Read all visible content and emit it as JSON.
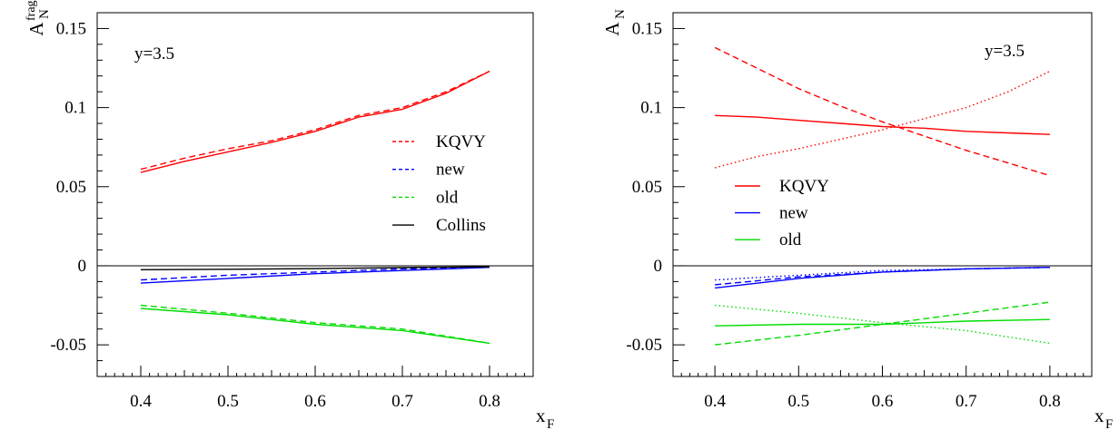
{
  "chart_data": [
    {
      "type": "line",
      "ylabel": "A_N^frag",
      "ylabel_main": "A",
      "ylabel_sub": "N",
      "ylabel_sup": "frag",
      "xlabel": "x_F",
      "xlabel_main": "x",
      "xlabel_sub": "F",
      "annotation": "y=3.5",
      "xlim": [
        0.35,
        0.85
      ],
      "ylim": [
        -0.07,
        0.16
      ],
      "xticks": [
        0.4,
        0.5,
        0.6,
        0.7,
        0.8
      ],
      "xtick_labels": [
        "0.4",
        "0.5",
        "0.6",
        "0.7",
        "0.8"
      ],
      "yticks": [
        -0.05,
        0,
        0.05,
        0.1,
        0.15
      ],
      "ytick_labels": [
        "-0.05",
        "0",
        "0.05",
        "0.1",
        "0.15"
      ],
      "legend": [
        {
          "label": "KQVY",
          "color": "#ff0000",
          "style": "dashed"
        },
        {
          "label": "new",
          "color": "#0000ff",
          "style": "dashed"
        },
        {
          "label": "old",
          "color": "#00dd00",
          "style": "dashed"
        },
        {
          "label": "Collins",
          "color": "#000000",
          "style": "solid"
        }
      ],
      "legend_position": "middle-right",
      "series": [
        {
          "color": "#ff0000",
          "style": "solid",
          "x": [
            0.4,
            0.45,
            0.5,
            0.55,
            0.6,
            0.65,
            0.7,
            0.75,
            0.8
          ],
          "y": [
            0.059,
            0.066,
            0.072,
            0.078,
            0.085,
            0.094,
            0.099,
            0.109,
            0.123
          ]
        },
        {
          "color": "#ff0000",
          "style": "dashed",
          "x": [
            0.4,
            0.45,
            0.5,
            0.55,
            0.6,
            0.65,
            0.7,
            0.75,
            0.8
          ],
          "y": [
            0.061,
            0.068,
            0.074,
            0.079,
            0.086,
            0.095,
            0.1,
            0.11,
            0.123
          ]
        },
        {
          "color": "#0000ff",
          "style": "solid",
          "x": [
            0.4,
            0.5,
            0.6,
            0.7,
            0.8
          ],
          "y": [
            -0.011,
            -0.008,
            -0.005,
            -0.003,
            -0.001
          ]
        },
        {
          "color": "#0000ff",
          "style": "dashed",
          "x": [
            0.4,
            0.5,
            0.6,
            0.7,
            0.8
          ],
          "y": [
            -0.009,
            -0.006,
            -0.004,
            -0.002,
            -0.001
          ]
        },
        {
          "color": "#00dd00",
          "style": "solid",
          "x": [
            0.4,
            0.5,
            0.6,
            0.7,
            0.8
          ],
          "y": [
            -0.027,
            -0.031,
            -0.037,
            -0.041,
            -0.049
          ]
        },
        {
          "color": "#00dd00",
          "style": "dashed",
          "x": [
            0.4,
            0.5,
            0.6,
            0.7,
            0.8
          ],
          "y": [
            -0.025,
            -0.03,
            -0.036,
            -0.04,
            -0.049
          ]
        },
        {
          "color": "#000000",
          "style": "solid",
          "x": [
            0.4,
            0.5,
            0.6,
            0.7,
            0.8
          ],
          "y": [
            -0.0025,
            -0.0022,
            -0.0018,
            -0.0012,
            -0.0006
          ]
        }
      ]
    },
    {
      "type": "line",
      "ylabel": "A_N",
      "ylabel_main": "A",
      "ylabel_sub": "N",
      "ylabel_sup": "",
      "xlabel": "x_F",
      "xlabel_main": "x",
      "xlabel_sub": "F",
      "annotation": "y=3.5",
      "xlim": [
        0.35,
        0.85
      ],
      "ylim": [
        -0.07,
        0.16
      ],
      "xticks": [
        0.4,
        0.5,
        0.6,
        0.7,
        0.8
      ],
      "xtick_labels": [
        "0.4",
        "0.5",
        "0.6",
        "0.7",
        "0.8"
      ],
      "yticks": [
        -0.05,
        0,
        0.05,
        0.1,
        0.15
      ],
      "ytick_labels": [
        "-0.05",
        "0",
        "0.05",
        "0.1",
        "0.15"
      ],
      "legend": [
        {
          "label": "KQVY",
          "color": "#ff0000",
          "style": "solid"
        },
        {
          "label": "new",
          "color": "#0000ff",
          "style": "solid"
        },
        {
          "label": "old",
          "color": "#00dd00",
          "style": "solid"
        }
      ],
      "legend_position": "middle-left",
      "series": [
        {
          "color": "#ff0000",
          "style": "solid",
          "x": [
            0.4,
            0.45,
            0.5,
            0.55,
            0.6,
            0.65,
            0.7,
            0.75,
            0.8
          ],
          "y": [
            0.095,
            0.094,
            0.092,
            0.09,
            0.088,
            0.087,
            0.085,
            0.084,
            0.083
          ]
        },
        {
          "color": "#ff0000",
          "style": "dashed",
          "x": [
            0.4,
            0.45,
            0.5,
            0.55,
            0.6,
            0.65,
            0.7,
            0.75,
            0.8
          ],
          "y": [
            0.138,
            0.125,
            0.112,
            0.101,
            0.091,
            0.082,
            0.073,
            0.065,
            0.057
          ]
        },
        {
          "color": "#ff0000",
          "style": "dotted",
          "x": [
            0.4,
            0.45,
            0.5,
            0.55,
            0.6,
            0.65,
            0.7,
            0.75,
            0.8
          ],
          "y": [
            0.062,
            0.069,
            0.074,
            0.08,
            0.086,
            0.093,
            0.1,
            0.11,
            0.123
          ]
        },
        {
          "color": "#0000ff",
          "style": "solid",
          "x": [
            0.4,
            0.5,
            0.6,
            0.7,
            0.8
          ],
          "y": [
            -0.014,
            -0.008,
            -0.004,
            -0.002,
            -0.001
          ]
        },
        {
          "color": "#0000ff",
          "style": "dashed",
          "x": [
            0.4,
            0.5,
            0.6,
            0.7,
            0.8
          ],
          "y": [
            -0.012,
            -0.007,
            -0.004,
            -0.002,
            -0.001
          ]
        },
        {
          "color": "#0000ff",
          "style": "dotted",
          "x": [
            0.4,
            0.5,
            0.6,
            0.7,
            0.8
          ],
          "y": [
            -0.009,
            -0.006,
            -0.003,
            -0.002,
            -0.001
          ]
        },
        {
          "color": "#00dd00",
          "style": "solid",
          "x": [
            0.4,
            0.5,
            0.6,
            0.7,
            0.8
          ],
          "y": [
            -0.038,
            -0.037,
            -0.037,
            -0.035,
            -0.034
          ]
        },
        {
          "color": "#00dd00",
          "style": "dashed",
          "x": [
            0.4,
            0.5,
            0.6,
            0.7,
            0.8
          ],
          "y": [
            -0.05,
            -0.044,
            -0.037,
            -0.03,
            -0.023
          ]
        },
        {
          "color": "#00dd00",
          "style": "dotted",
          "x": [
            0.4,
            0.5,
            0.6,
            0.7,
            0.8
          ],
          "y": [
            -0.025,
            -0.03,
            -0.036,
            -0.041,
            -0.049
          ]
        }
      ]
    }
  ]
}
